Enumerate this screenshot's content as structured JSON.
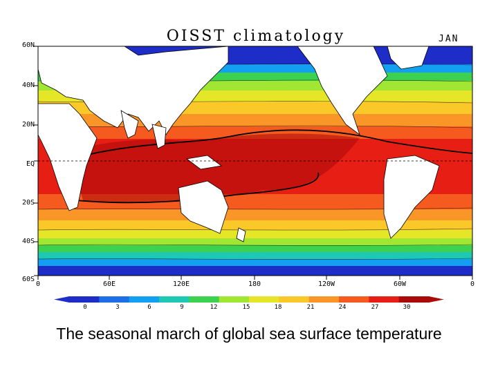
{
  "map": {
    "title": "OISST climatology",
    "month": "JAN",
    "lat_labels": [
      "60N",
      "40N",
      "20N",
      "EQ",
      "20S",
      "40S",
      "60S"
    ],
    "lon_labels": [
      "0",
      "60E",
      "120E",
      "180",
      "120W",
      "60W",
      "0"
    ]
  },
  "colorbar": {
    "ticks": [
      "0",
      "3",
      "6",
      "9",
      "12",
      "15",
      "18",
      "21",
      "24",
      "27",
      "30"
    ],
    "colors": [
      "#1e2cc8",
      "#1e6ee6",
      "#14a0f0",
      "#1ec8b4",
      "#3cd250",
      "#a0e632",
      "#e6e628",
      "#fac828",
      "#fa9628",
      "#f55a1e",
      "#e61e14",
      "#aa0a0a"
    ]
  },
  "caption": "The seasonal march of global sea surface temperature"
}
